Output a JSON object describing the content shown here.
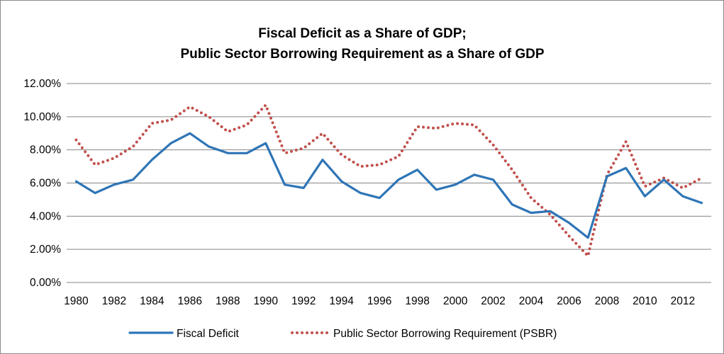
{
  "chart_data": {
    "type": "line",
    "title_lines": [
      "Fiscal Deficit as a Share of GDP;",
      "Public Sector Borrowing Requirement as a Share of GDP"
    ],
    "xlabel": "",
    "ylabel": "",
    "ylim": [
      0,
      12
    ],
    "y_ticks": [
      0,
      2,
      4,
      6,
      8,
      10,
      12
    ],
    "y_tick_labels": [
      "0.00%",
      "2.00%",
      "4.00%",
      "6.00%",
      "8.00%",
      "10.00%",
      "12.00%"
    ],
    "x_tick_labels": [
      "1980",
      "1982",
      "1984",
      "1986",
      "1988",
      "1990",
      "1992",
      "1994",
      "1996",
      "1998",
      "2000",
      "2002",
      "2004",
      "2006",
      "2008",
      "2010",
      "2012"
    ],
    "grid": "horizontal",
    "legend_position": "bottom",
    "x": [
      1980,
      1981,
      1982,
      1983,
      1984,
      1985,
      1986,
      1987,
      1988,
      1989,
      1990,
      1991,
      1992,
      1993,
      1994,
      1995,
      1996,
      1997,
      1998,
      1999,
      2000,
      2001,
      2002,
      2003,
      2004,
      2005,
      2006,
      2007,
      2008,
      2009,
      2010,
      2011,
      2012,
      2013
    ],
    "series": [
      {
        "name": "Fiscal Deficit",
        "color": "#2e75b6",
        "style": "solid",
        "values": [
          6.1,
          5.4,
          5.9,
          6.2,
          7.4,
          8.4,
          9.0,
          8.2,
          7.8,
          7.8,
          8.4,
          5.9,
          5.7,
          7.4,
          6.1,
          5.4,
          5.1,
          6.2,
          6.8,
          5.6,
          5.9,
          6.5,
          6.2,
          4.7,
          4.2,
          4.3,
          3.6,
          2.7,
          6.4,
          6.9,
          5.2,
          6.2,
          5.2,
          4.8
        ]
      },
      {
        "name": "Public Sector Borrowing Requirement (PSBR)",
        "color": "#c0504d",
        "style": "dotted",
        "values": [
          8.6,
          7.1,
          7.5,
          8.2,
          9.6,
          9.8,
          10.6,
          10.0,
          9.1,
          9.5,
          10.7,
          7.8,
          8.1,
          9.0,
          7.7,
          7.0,
          7.1,
          7.6,
          9.4,
          9.3,
          9.6,
          9.5,
          8.3,
          6.8,
          5.1,
          4.1,
          2.8,
          1.6,
          6.5,
          8.5,
          5.8,
          6.3,
          5.7,
          6.3
        ]
      }
    ]
  }
}
